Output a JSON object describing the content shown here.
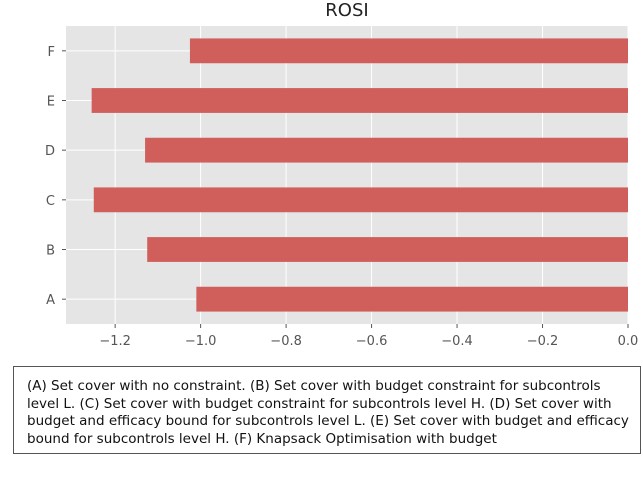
{
  "chart_data": {
    "type": "bar",
    "orientation": "horizontal",
    "title": "ROSI",
    "xlabel": "",
    "ylabel": "",
    "categories": [
      "A",
      "B",
      "C",
      "D",
      "E",
      "F"
    ],
    "values": [
      -1.01,
      -1.125,
      -1.25,
      -1.13,
      -1.255,
      -1.025
    ],
    "xlim": [
      -1.315,
      0.0
    ],
    "xticks": [
      -1.2,
      -1.0,
      -0.8,
      -0.6,
      -0.4,
      -0.2,
      0.0
    ],
    "xtick_labels": [
      "−1.2",
      "−1.0",
      "−0.8",
      "−0.6",
      "−0.4",
      "−0.2",
      "0.0"
    ],
    "grid": true,
    "legend": "none",
    "colors": {
      "bar": "#d05f5c",
      "background": "#e5e5e5",
      "grid": "#ffffff"
    }
  },
  "caption": "(A) Set cover with no constraint. (B) Set cover with budget constraint for subcontrols level L. (C) Set cover with budget constraint for subcontrols level H. (D) Set cover with budget and efficacy bound for subcontrols level L. (E) Set cover with budget and efficacy bound for subcontrols level H. (F) Knapsack Optimisation with budget"
}
